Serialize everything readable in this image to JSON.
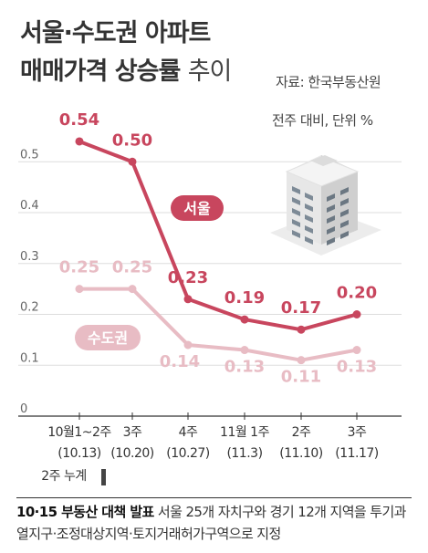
{
  "title_line1": "서울·수도권 아파트",
  "title_line2_bold": "매매가격 상승률",
  "title_line2_light": "추이",
  "source": "자료: 한국부동산원",
  "unit_note": "전주 대비, 단위 %",
  "footnote_label": "2주 누계",
  "footer": {
    "bold": "10·15 부동산 대책 발표",
    "text": " 서울 25개 자치구와 경기 12개 지역을 투기과열지구·조정대상지역·토지거래허가구역으로 지정"
  },
  "colors": {
    "seoul": "#c8465e",
    "capital": "#e8bcc4",
    "grid": "#dddddd"
  },
  "chart_data": {
    "type": "line",
    "categories": [
      {
        "week": "10월1~2주",
        "date": "(10.13)"
      },
      {
        "week": "3주",
        "date": "(10.20)"
      },
      {
        "week": "4주",
        "date": "(10.27)"
      },
      {
        "week": "11월 1주",
        "date": "(11.3)"
      },
      {
        "week": "2주",
        "date": "(11.10)"
      },
      {
        "week": "3주",
        "date": "(11.17)"
      }
    ],
    "series": [
      {
        "name": "서울",
        "values": [
          0.54,
          0.5,
          0.23,
          0.19,
          0.17,
          0.2
        ],
        "labels": [
          "0.54",
          "0.50",
          "0.23",
          "0.19",
          "0.17",
          "0.20"
        ]
      },
      {
        "name": "수도권",
        "values": [
          0.25,
          0.25,
          0.14,
          0.13,
          0.11,
          0.13
        ],
        "labels": [
          "0.25",
          "0.25",
          "0.14",
          "0.13",
          "0.11",
          "0.13"
        ]
      }
    ],
    "yticks": [
      "0",
      "0.1",
      "0.2",
      "0.3",
      "0.4",
      "0.5"
    ],
    "ylim": [
      0,
      0.55
    ],
    "grid": true
  }
}
